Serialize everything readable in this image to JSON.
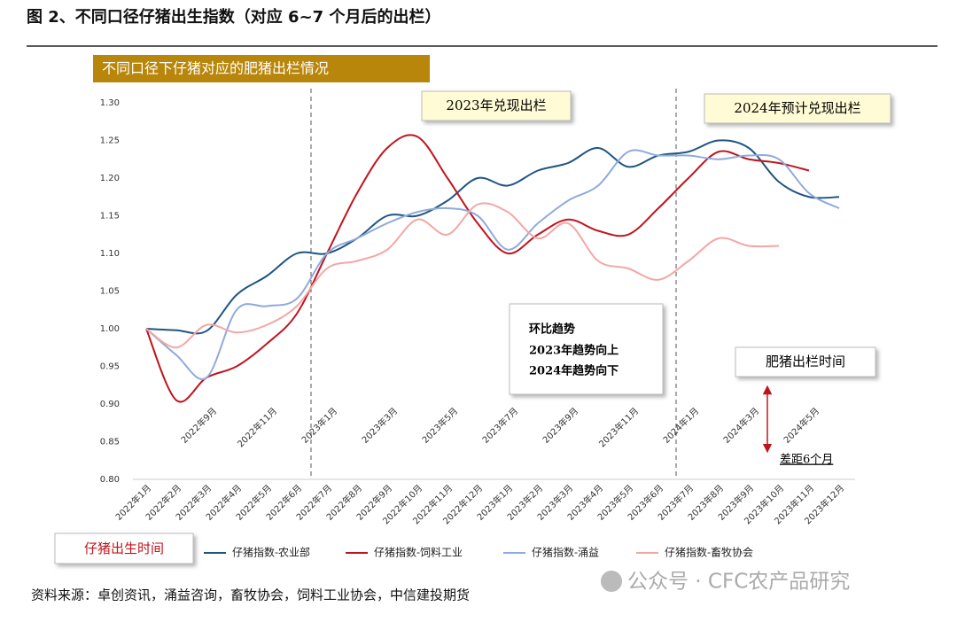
{
  "chart_data": {
    "type": "line",
    "title": "图 2、不同口径仔猪出生指数（对应 6~7 个月后的出栏）",
    "banner": "不同口径下仔猪对应的肥猪出栏情况",
    "categories": [
      "2022年1月",
      "2022年2月",
      "2022年3月",
      "2022年4月",
      "2022年5月",
      "2022年6月",
      "2022年7月",
      "2022年8月",
      "2022年9月",
      "2022年10月",
      "2022年11月",
      "2022年12月",
      "2023年1月",
      "2023年2月",
      "2023年3月",
      "2023年4月",
      "2023年5月",
      "2023年6月",
      "2023年7月",
      "2023年8月",
      "2023年9月",
      "2023年10月",
      "2023年11月",
      "2023年12月"
    ],
    "x2_labels": [
      "2022年9月",
      "2022年11月",
      "2023年1月",
      "2023年3月",
      "2023年5月",
      "2023年7月",
      "2023年9月",
      "2023年11月",
      "2024年1月",
      "2024年3月",
      "2024年5月"
    ],
    "ylim": [
      0.8,
      1.3
    ],
    "yticks": [
      {
        "value": 0.8,
        "label": "0.80"
      },
      {
        "value": 0.85,
        "label": "0.85"
      },
      {
        "value": 0.9,
        "label": "0.90"
      },
      {
        "value": 0.95,
        "label": "0.95"
      },
      {
        "value": 1.0,
        "label": "1.00"
      },
      {
        "value": 1.05,
        "label": "1.05"
      },
      {
        "value": 1.1,
        "label": "1.10"
      },
      {
        "value": 1.15,
        "label": "1.15"
      },
      {
        "value": 1.2,
        "label": "1.20"
      },
      {
        "value": 1.25,
        "label": "1.25"
      },
      {
        "value": 1.3,
        "label": "1.30"
      }
    ],
    "series": [
      {
        "name": "仔猪指数-农业部",
        "color": "#1f5582",
        "values": [
          1.0,
          0.998,
          0.997,
          1.045,
          1.07,
          1.1,
          1.1,
          1.12,
          1.15,
          1.15,
          1.17,
          1.2,
          1.19,
          1.21,
          1.22,
          1.24,
          1.215,
          1.23,
          1.235,
          1.25,
          1.24,
          1.195,
          1.175,
          1.175
        ]
      },
      {
        "name": "仔猪指数-饲料工业",
        "color": "#c0141c",
        "values": [
          1.0,
          0.905,
          0.935,
          0.95,
          0.98,
          1.02,
          1.1,
          1.18,
          1.24,
          1.255,
          1.2,
          1.14,
          1.1,
          1.125,
          1.145,
          1.13,
          1.125,
          1.16,
          1.2,
          1.235,
          1.225,
          1.22,
          1.21,
          null
        ]
      },
      {
        "name": "仔猪指数-涌益",
        "color": "#8faadc",
        "values": [
          1.0,
          0.965,
          0.935,
          1.025,
          1.03,
          1.04,
          1.1,
          1.12,
          1.14,
          1.155,
          1.16,
          1.15,
          1.105,
          1.14,
          1.17,
          1.19,
          1.235,
          1.23,
          1.23,
          1.225,
          1.23,
          1.225,
          1.18,
          1.16
        ]
      },
      {
        "name": "仔猪指数-畜牧协会",
        "color": "#f4a6a6",
        "values": [
          1.0,
          0.975,
          1.005,
          0.995,
          1.005,
          1.03,
          1.08,
          1.09,
          1.105,
          1.145,
          1.125,
          1.165,
          1.155,
          1.12,
          1.14,
          1.09,
          1.08,
          1.065,
          1.09,
          1.12,
          1.11,
          1.11,
          null,
          null
        ]
      }
    ],
    "annotations": {
      "y2023": "2023年兑现出栏",
      "y2024": "2024年预计兑现出栏",
      "trend": [
        "环比趋势",
        "2023年趋势向上",
        "2024年趋势向下"
      ],
      "finish_time": "肥猪出栏时间",
      "gap": "差距6个月",
      "birth_time": "仔猪出生时间"
    },
    "source": "资料来源：卓创资讯，涌益咨询，畜牧协会，饲料工业协会，中信建投期货",
    "watermark": "公众号 · CFC农产品研究"
  }
}
